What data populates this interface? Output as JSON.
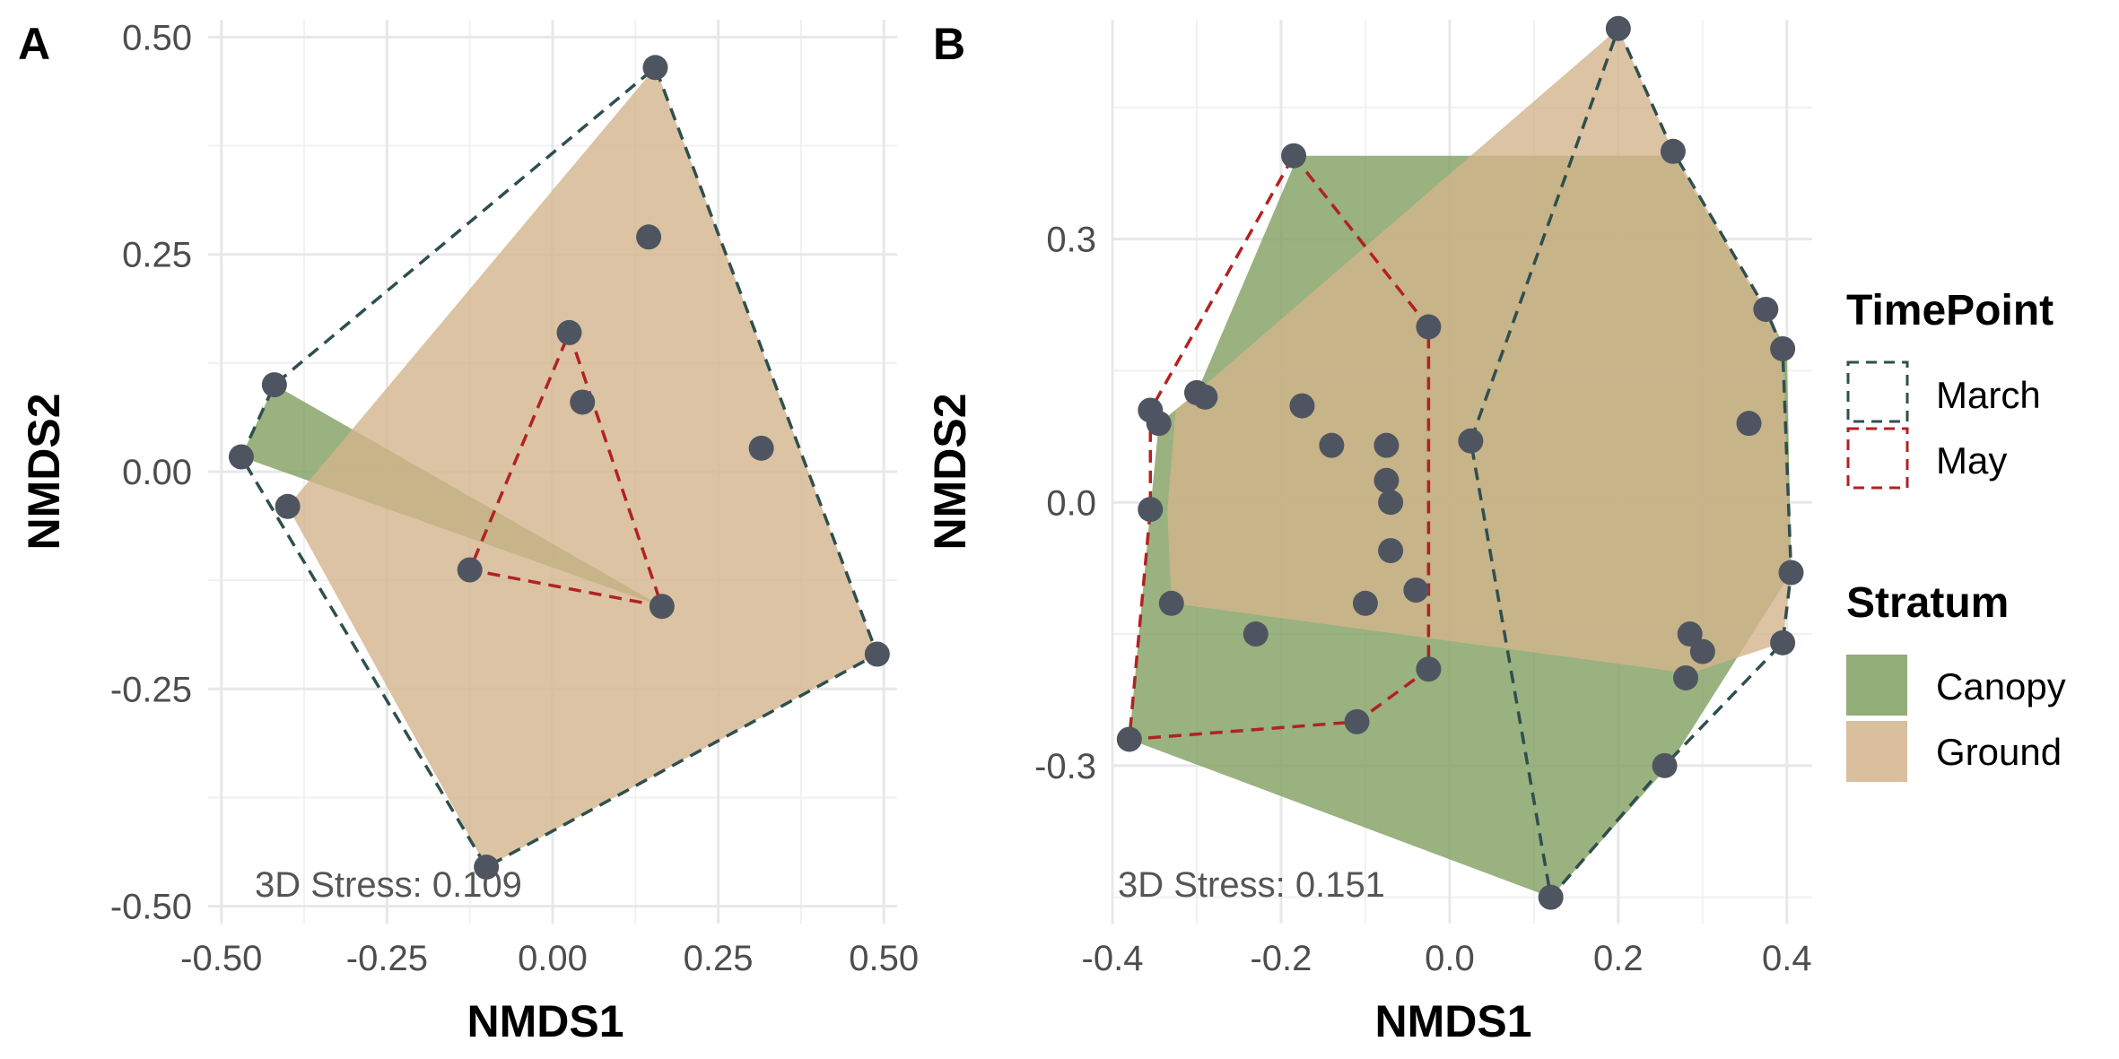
{
  "colors": {
    "march": "#2f4f4f",
    "may": "#b22222",
    "canopy": "#7f9f5f",
    "ground": "#d2b48c",
    "point": "#4f5560",
    "grid": "#e8e8e8"
  },
  "legend": {
    "timepoint_title": "TimePoint",
    "timepoint_items": [
      "March",
      "May"
    ],
    "stratum_title": "Stratum",
    "stratum_items": [
      "Canopy",
      "Ground"
    ]
  },
  "chart_data": [
    {
      "type": "scatter",
      "panel": "A",
      "xlabel": "NMDS1",
      "ylabel": "NMDS2",
      "xlim": [
        -0.52,
        0.52
      ],
      "ylim": [
        -0.52,
        0.52
      ],
      "xticks": [
        -0.5,
        -0.25,
        0.0,
        0.25,
        0.5
      ],
      "yticks": [
        -0.5,
        -0.25,
        0.0,
        0.25,
        0.5
      ],
      "xtick_labels": [
        "-0.50",
        "-0.25",
        "0.00",
        "0.25",
        "0.50"
      ],
      "ytick_labels": [
        "-0.50",
        "-0.25",
        "0.00",
        "0.25",
        "0.50"
      ],
      "stress": "3D Stress: 0.109",
      "points": [
        [
          0.155,
          0.465
        ],
        [
          0.145,
          0.27
        ],
        [
          -0.42,
          0.1
        ],
        [
          -0.47,
          0.017
        ],
        [
          -0.4,
          -0.04
        ],
        [
          0.025,
          0.16
        ],
        [
          0.045,
          0.08
        ],
        [
          0.315,
          0.027
        ],
        [
          -0.125,
          -0.113
        ],
        [
          0.165,
          -0.155
        ],
        [
          0.49,
          -0.21
        ],
        [
          -0.1,
          -0.455
        ]
      ],
      "hulls": {
        "canopy": [
          [
            -0.47,
            0.017
          ],
          [
            -0.42,
            0.1
          ],
          [
            0.165,
            -0.155
          ]
        ],
        "ground": [
          [
            0.155,
            0.465
          ],
          [
            0.49,
            -0.21
          ],
          [
            -0.1,
            -0.455
          ],
          [
            -0.4,
            -0.04
          ]
        ],
        "march": [
          [
            -0.47,
            0.017
          ],
          [
            -0.42,
            0.1
          ],
          [
            0.155,
            0.465
          ],
          [
            0.49,
            -0.21
          ],
          [
            -0.1,
            -0.455
          ]
        ],
        "may": [
          [
            0.025,
            0.16
          ],
          [
            0.165,
            -0.155
          ],
          [
            -0.125,
            -0.113
          ]
        ]
      }
    },
    {
      "type": "scatter",
      "panel": "B",
      "xlabel": "NMDS1",
      "ylabel": "NMDS2",
      "xlim": [
        -0.4,
        0.43
      ],
      "ylim": [
        -0.48,
        0.55
      ],
      "xticks": [
        -0.4,
        -0.2,
        0.0,
        0.2,
        0.4
      ],
      "yticks": [
        -0.3,
        0.0,
        0.3
      ],
      "xtick_labels": [
        "-0.4",
        "-0.2",
        "0.0",
        "0.2",
        "0.4"
      ],
      "ytick_labels": [
        "-0.3",
        "0.0",
        "0.3"
      ],
      "stress": "3D Stress: 0.151",
      "points": [
        [
          0.2,
          0.54
        ],
        [
          0.265,
          0.4
        ],
        [
          -0.185,
          0.395
        ],
        [
          0.375,
          0.22
        ],
        [
          0.395,
          0.175
        ],
        [
          -0.025,
          0.2
        ],
        [
          -0.3,
          0.125
        ],
        [
          -0.29,
          0.12
        ],
        [
          -0.175,
          0.11
        ],
        [
          -0.355,
          0.105
        ],
        [
          -0.345,
          0.09
        ],
        [
          0.355,
          0.09
        ],
        [
          0.025,
          0.07
        ],
        [
          -0.14,
          0.065
        ],
        [
          -0.075,
          0.065
        ],
        [
          -0.075,
          0.025
        ],
        [
          -0.07,
          0.0
        ],
        [
          -0.355,
          -0.008
        ],
        [
          -0.07,
          -0.055
        ],
        [
          -0.04,
          -0.1
        ],
        [
          0.405,
          -0.08
        ],
        [
          -0.33,
          -0.115
        ],
        [
          -0.1,
          -0.115
        ],
        [
          -0.23,
          -0.15
        ],
        [
          0.285,
          -0.15
        ],
        [
          0.3,
          -0.17
        ],
        [
          0.395,
          -0.16
        ],
        [
          -0.025,
          -0.19
        ],
        [
          0.28,
          -0.2
        ],
        [
          -0.11,
          -0.25
        ],
        [
          -0.38,
          -0.27
        ],
        [
          0.255,
          -0.3
        ],
        [
          0.12,
          -0.45
        ]
      ],
      "hulls": {
        "canopy": [
          [
            -0.18,
            0.395
          ],
          [
            0.265,
            0.395
          ],
          [
            0.4,
            0.175
          ],
          [
            0.405,
            -0.08
          ],
          [
            0.26,
            -0.3
          ],
          [
            0.12,
            -0.45
          ],
          [
            -0.38,
            -0.27
          ],
          [
            -0.355,
            -0.008
          ],
          [
            -0.345,
            0.09
          ],
          [
            -0.3,
            0.125
          ]
        ],
        "ground": [
          [
            -0.325,
            0.105
          ],
          [
            0.2,
            0.54
          ],
          [
            0.265,
            0.4
          ],
          [
            0.375,
            0.22
          ],
          [
            0.395,
            0.175
          ],
          [
            0.405,
            -0.08
          ],
          [
            0.395,
            -0.16
          ],
          [
            0.285,
            -0.195
          ],
          [
            -0.33,
            -0.115
          ],
          [
            -0.335,
            -0.01
          ]
        ],
        "march": [
          [
            0.2,
            0.54
          ],
          [
            0.265,
            0.4
          ],
          [
            0.375,
            0.22
          ],
          [
            0.395,
            0.175
          ],
          [
            0.405,
            -0.08
          ],
          [
            0.395,
            -0.16
          ],
          [
            0.255,
            -0.3
          ],
          [
            0.12,
            -0.45
          ],
          [
            0.025,
            0.07
          ]
        ],
        "may": [
          [
            -0.185,
            0.395
          ],
          [
            -0.025,
            0.2
          ],
          [
            -0.025,
            -0.19
          ],
          [
            -0.11,
            -0.25
          ],
          [
            -0.38,
            -0.27
          ],
          [
            -0.355,
            -0.008
          ],
          [
            -0.355,
            0.105
          ]
        ]
      }
    }
  ]
}
